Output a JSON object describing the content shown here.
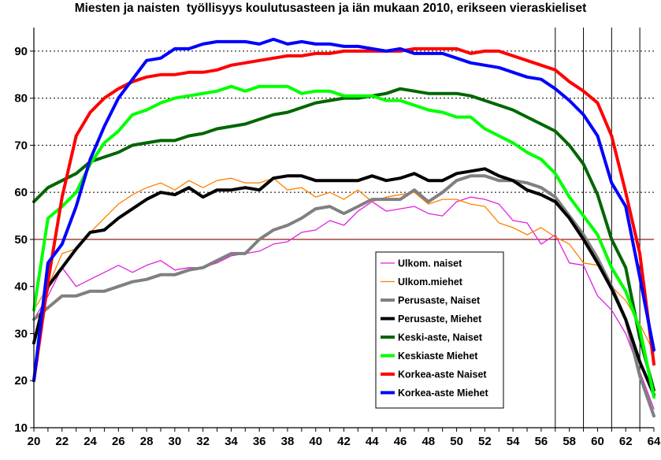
{
  "chart_data": {
    "type": "line",
    "title": "Miesten ja naisten  työllisyys koulutusasteen ja iän mukaan 2010, erikseen vieraskieliset",
    "xlabel": "",
    "ylabel": "",
    "xlim": [
      20,
      64
    ],
    "ylim": [
      10,
      95
    ],
    "x_tick_labels": [
      "20",
      "22",
      "24",
      "26",
      "28",
      "30",
      "32",
      "34",
      "36",
      "38",
      "40",
      "42",
      "44",
      "46",
      "48",
      "50",
      "52",
      "54",
      "56",
      "58",
      "60",
      "62",
      "64"
    ],
    "y_tick_labels": [
      "10",
      "20",
      "30",
      "40",
      "50",
      "60",
      "70",
      "80",
      "90"
    ],
    "gridlines": {
      "y": [
        60,
        70,
        80,
        90
      ],
      "style": "dotted"
    },
    "reference_line": {
      "y": 50,
      "color": "#8b0000"
    },
    "vertical_markers": [
      57,
      59,
      61,
      63
    ],
    "legend_position": "center-right",
    "x": [
      20,
      21,
      22,
      23,
      24,
      25,
      26,
      27,
      28,
      29,
      30,
      31,
      32,
      33,
      34,
      35,
      36,
      37,
      38,
      39,
      40,
      41,
      42,
      43,
      44,
      45,
      46,
      47,
      48,
      49,
      50,
      51,
      52,
      53,
      54,
      55,
      56,
      57,
      58,
      59,
      60,
      61,
      62,
      63,
      64
    ],
    "series": [
      {
        "name": "Ulkom. naiset",
        "color": "#e020e0",
        "width": 1.3,
        "values": [
          33,
          38,
          44,
          40,
          41.5,
          43,
          44.5,
          43,
          44.5,
          45.5,
          43.5,
          44,
          44,
          45,
          46.5,
          47,
          47.5,
          49,
          49.5,
          51.5,
          52,
          54,
          53,
          56,
          58,
          56,
          56.5,
          57,
          55.5,
          55,
          58,
          59,
          58.5,
          57.5,
          54,
          53.5,
          49,
          51,
          45,
          44.5,
          38,
          35,
          30,
          22,
          14
        ]
      },
      {
        "name": "Ulkom.miehet",
        "color": "#ff8000",
        "width": 1.3,
        "values": [
          35,
          40,
          47,
          48,
          51.5,
          54.5,
          57.5,
          59.5,
          61,
          62,
          60.5,
          62.5,
          61,
          62.5,
          63,
          62,
          62,
          63,
          60.5,
          61,
          59,
          60,
          58.5,
          60.5,
          58,
          59,
          59.5,
          60,
          57.5,
          58.5,
          58.5,
          57.5,
          57,
          53.5,
          52.5,
          51,
          52.5,
          50.5,
          49,
          45,
          44.5,
          40,
          37,
          32,
          26
        ]
      },
      {
        "name": "Perusaste, Naiset",
        "color": "#808080",
        "width": 4,
        "values": [
          33,
          35.5,
          38,
          38,
          39,
          39,
          40,
          41,
          41.5,
          42.5,
          42.5,
          43.5,
          44,
          45.5,
          47,
          47,
          50,
          52,
          53,
          54.5,
          56.5,
          57,
          55.5,
          57,
          58.5,
          58.5,
          58.5,
          60.5,
          58,
          60,
          62.5,
          63.5,
          63.5,
          62.5,
          62.5,
          62,
          61,
          59,
          55,
          51,
          46,
          40,
          33,
          21,
          12.5
        ]
      },
      {
        "name": "Perusaste, Miehet",
        "color": "#000000",
        "width": 4,
        "values": [
          28,
          40,
          44,
          48,
          51.5,
          52,
          54.5,
          56.5,
          58.5,
          60,
          59.5,
          61,
          59,
          60.5,
          60.5,
          61,
          60.5,
          63,
          63.5,
          63.5,
          62.5,
          62.5,
          62.5,
          62.5,
          63.5,
          62.5,
          63,
          64,
          62.5,
          62.5,
          64,
          64.5,
          65,
          63.5,
          62.5,
          60.5,
          59.5,
          58,
          54.5,
          50,
          45,
          39.5,
          33,
          24,
          17
        ]
      },
      {
        "name": "Keski-aste, Naiset",
        "color": "#006600",
        "width": 4,
        "values": [
          58,
          61,
          62.5,
          64,
          66.5,
          67.5,
          68.5,
          70,
          70.5,
          71,
          71,
          72,
          72.5,
          73.5,
          74,
          74.5,
          75.5,
          76.5,
          77,
          78,
          79,
          79.5,
          80,
          80,
          80.5,
          81,
          82,
          81.5,
          81,
          81,
          81,
          80.5,
          79.5,
          78.5,
          77.5,
          76,
          74.5,
          73,
          70,
          66,
          59.5,
          50,
          44,
          29,
          18
        ]
      },
      {
        "name": "Keskiaste Miehet",
        "color": "#00ff00",
        "width": 4,
        "values": [
          35,
          54.5,
          57,
          60,
          66,
          70.5,
          73,
          76.5,
          77.5,
          79,
          80,
          80.5,
          81,
          81.5,
          82.5,
          81.5,
          82.5,
          82.5,
          82.5,
          81,
          81.5,
          81.5,
          80.5,
          80.5,
          80.5,
          79.5,
          79.5,
          78.5,
          77.5,
          77,
          76,
          76,
          73.5,
          72,
          70.5,
          68.5,
          67,
          64,
          59,
          55,
          51,
          44,
          39,
          31,
          16.5
        ]
      },
      {
        "name": "Korkea-aste Naiset",
        "color": "#ff0000",
        "width": 4,
        "values": [
          20,
          41,
          59,
          72,
          77,
          80,
          82,
          83.5,
          84.5,
          85,
          85,
          85.5,
          85.5,
          86,
          87,
          87.5,
          88,
          88.5,
          89,
          89,
          89.5,
          89.5,
          90,
          90,
          90,
          90,
          90,
          90.5,
          90.5,
          90.5,
          90.5,
          89.5,
          90,
          90,
          89,
          88,
          87,
          86,
          83.5,
          81.5,
          79,
          72,
          60,
          47,
          23.5
        ]
      },
      {
        "name": "Korkea-aste Miehet",
        "color": "#0000ff",
        "width": 4,
        "values": [
          20,
          45,
          49,
          57,
          67,
          74,
          80,
          84,
          88,
          88.5,
          90.5,
          90.5,
          91.5,
          92,
          92,
          92,
          91.5,
          92.5,
          91.5,
          92,
          91.5,
          91.5,
          91,
          91,
          90.5,
          90,
          90.5,
          89.5,
          89.5,
          89.5,
          88.5,
          87.5,
          87,
          86.5,
          85.5,
          84.5,
          84,
          82,
          79.5,
          76.5,
          72,
          62,
          57,
          42,
          26.5
        ]
      }
    ]
  }
}
